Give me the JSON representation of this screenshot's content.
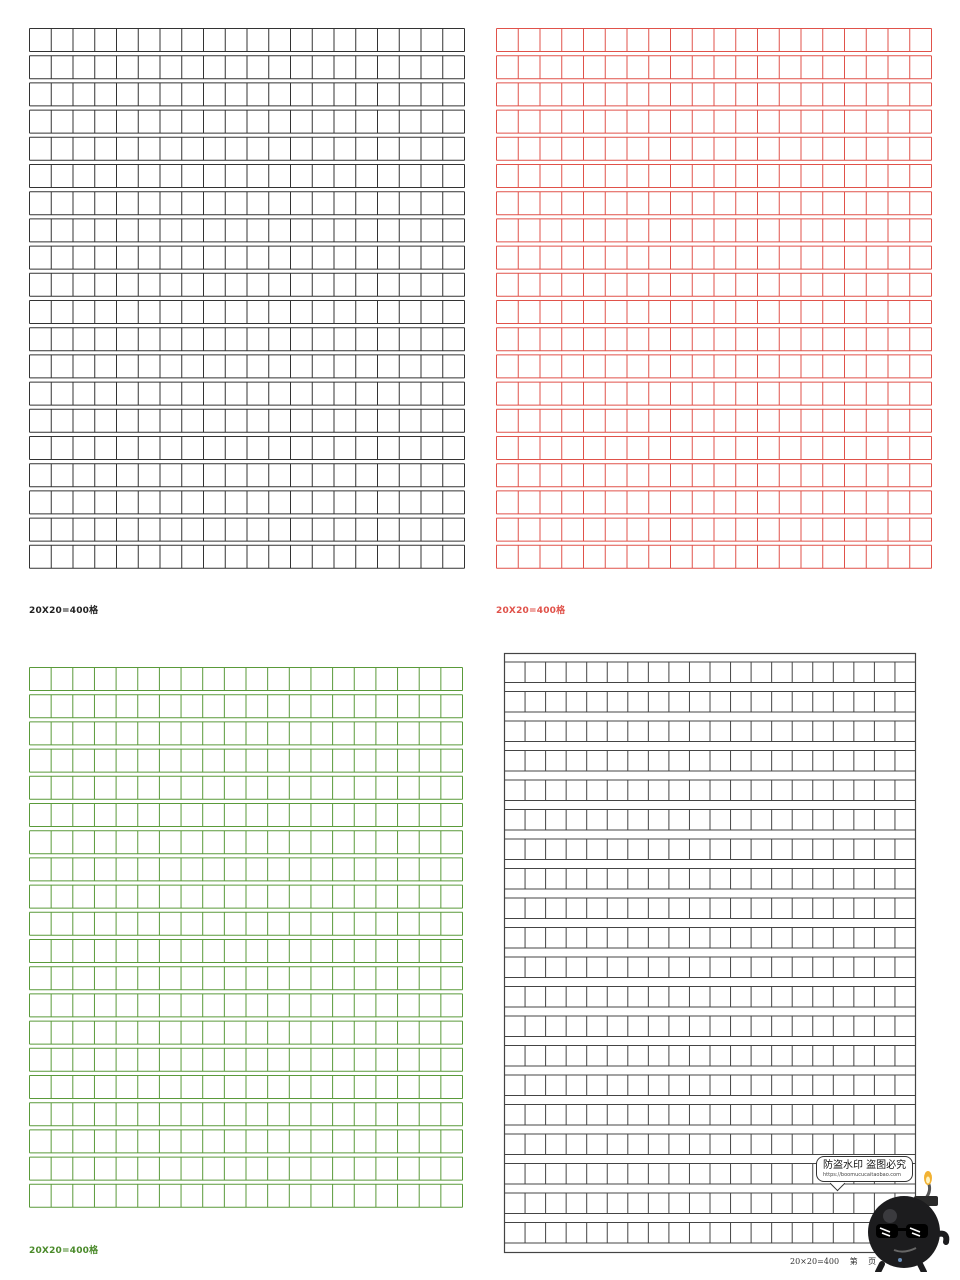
{
  "sheets": [
    {
      "id": "sheet-black",
      "line_color": "#333333",
      "caption": "20X20=400格",
      "caption_color": "#222222",
      "columns": 20,
      "rows": 20
    },
    {
      "id": "sheet-red",
      "line_color": "#e0524a",
      "caption": "20X20=400格",
      "caption_color": "#e0524a",
      "columns": 20,
      "rows": 20
    },
    {
      "id": "sheet-green",
      "line_color": "#5a9a3a",
      "caption": "20X20=400格",
      "caption_color": "#4a8a2a",
      "columns": 20,
      "rows": 20
    },
    {
      "id": "sheet-framed",
      "line_color": "#444444",
      "columns": 20,
      "rows": 20,
      "footer": {
        "count": "20×20=400",
        "page_prefix": "第",
        "page_suffix": "页"
      }
    }
  ],
  "watermark": {
    "text": "防盗水印 盗图必究",
    "url": "https://boomucucaitaobao.com",
    "icon": "bomb-mascot-icon",
    "accent": "#f2b233"
  }
}
